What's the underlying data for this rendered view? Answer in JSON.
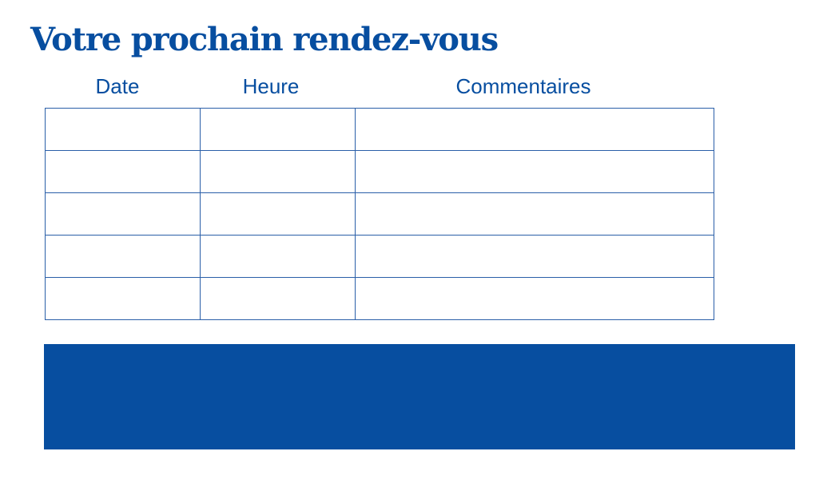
{
  "title": "Votre prochain rendez-vous",
  "columns": [
    "Date",
    "Heure",
    "Commentaires"
  ],
  "rows": [
    [
      "",
      "",
      ""
    ],
    [
      "",
      "",
      ""
    ],
    [
      "",
      "",
      ""
    ],
    [
      "",
      "",
      ""
    ],
    [
      "",
      "",
      ""
    ]
  ],
  "colors": {
    "primary": "#074ea0"
  }
}
